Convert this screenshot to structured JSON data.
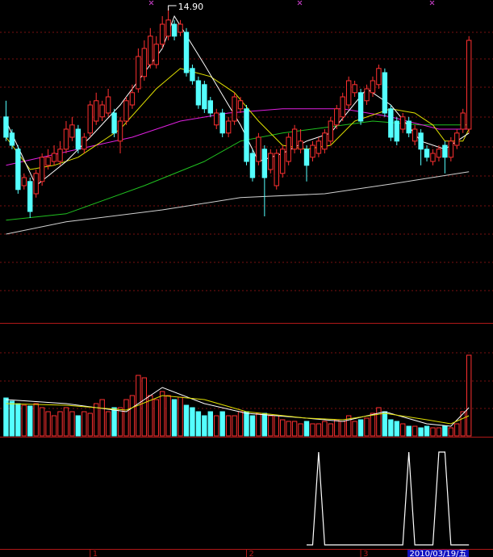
{
  "chart_data": [
    {
      "type": "candlestick",
      "up_color": "#ff3030",
      "down_color": "#54ffff",
      "xlim": [
        -1,
        81
      ],
      "ylim": [
        5.15,
        15.15
      ],
      "open": [
        11.53,
        11.03,
        10.53,
        9.4,
        9.53,
        9.15,
        9.53,
        10.03,
        10.15,
        10.15,
        10.53,
        10.9,
        11.15,
        10.53,
        11.03,
        11.4,
        11.53,
        11.65,
        11.65,
        10.78,
        11.4,
        11.9,
        12.4,
        12.78,
        13.15,
        13.15,
        13.78,
        14.03,
        14.4,
        14.15,
        14.15,
        13.03,
        12.65,
        12.53,
        12.03,
        11.28,
        11.65,
        11.03,
        11.4,
        11.78,
        11.78,
        10.4,
        10.15,
        10.53,
        9.9,
        9.4,
        9.78,
        10.15,
        10.53,
        10.53,
        10.53,
        10.28,
        10.4,
        10.53,
        10.78,
        11.28,
        11.53,
        11.9,
        12.28,
        12.28,
        12.03,
        12.28,
        12.53,
        12.9,
        11.78,
        11.4,
        11.15,
        11.4,
        10.78,
        11.03,
        10.53,
        10.15,
        10.28,
        10.65,
        10.28,
        10.65,
        11.15,
        11.15
      ],
      "close": [
        10.9,
        10.65,
        9.28,
        9.65,
        8.6,
        9.78,
        10.28,
        10.28,
        10.4,
        10.53,
        11.15,
        11.28,
        10.53,
        10.9,
        11.9,
        12.03,
        11.9,
        12.15,
        11.03,
        11.4,
        12.03,
        12.28,
        13.4,
        13.65,
        14.03,
        13.78,
        14.4,
        14.53,
        14.03,
        14.4,
        12.9,
        12.65,
        11.9,
        11.78,
        11.65,
        11.65,
        11.03,
        11.4,
        12.15,
        12.03,
        10.15,
        9.65,
        10.9,
        9.65,
        10.4,
        10.4,
        10.53,
        10.9,
        11.15,
        10.78,
        10.03,
        10.65,
        10.78,
        11.03,
        11.4,
        11.78,
        12.15,
        12.65,
        12.53,
        11.4,
        12.4,
        12.65,
        13.03,
        11.65,
        10.9,
        10.78,
        11.53,
        11.03,
        11.15,
        10.53,
        10.28,
        10.4,
        10.53,
        10.28,
        10.78,
        11.03,
        11.65,
        13.9
      ],
      "high": [
        12.03,
        11.15,
        10.65,
        9.78,
        9.65,
        9.9,
        10.4,
        10.53,
        10.65,
        10.78,
        11.4,
        11.53,
        11.28,
        11.03,
        12.03,
        12.28,
        12.03,
        12.4,
        11.78,
        11.53,
        12.15,
        12.53,
        13.65,
        13.9,
        14.28,
        14.03,
        14.65,
        14.9,
        14.53,
        14.53,
        14.28,
        13.15,
        12.78,
        12.65,
        12.15,
        11.78,
        11.78,
        11.53,
        12.28,
        12.15,
        11.9,
        10.53,
        11.03,
        10.65,
        10.53,
        10.53,
        10.65,
        11.03,
        11.28,
        11.15,
        10.65,
        10.78,
        10.9,
        11.15,
        11.53,
        11.9,
        12.28,
        12.78,
        12.65,
        12.4,
        12.53,
        12.78,
        13.15,
        13.03,
        11.9,
        11.53,
        11.65,
        11.53,
        11.28,
        11.15,
        10.65,
        10.53,
        10.65,
        10.78,
        10.9,
        11.15,
        11.78,
        14.03
      ],
      "low": [
        10.78,
        10.53,
        9.15,
        9.28,
        8.4,
        9.03,
        9.4,
        9.9,
        10.03,
        10.03,
        10.4,
        10.78,
        10.4,
        10.4,
        10.9,
        11.28,
        11.4,
        11.53,
        10.9,
        10.4,
        11.28,
        11.78,
        12.28,
        12.65,
        13.03,
        13.03,
        13.65,
        13.9,
        13.9,
        14.03,
        12.78,
        12.53,
        11.78,
        11.65,
        11.53,
        11.15,
        10.9,
        10.9,
        11.28,
        11.65,
        10.03,
        9.53,
        10.03,
        8.45,
        9.78,
        9.28,
        9.65,
        10.03,
        10.4,
        10.4,
        9.53,
        10.15,
        10.28,
        10.4,
        10.65,
        11.15,
        11.4,
        11.78,
        12.15,
        11.28,
        11.9,
        12.15,
        12.4,
        11.53,
        10.78,
        10.65,
        11.03,
        10.9,
        10.65,
        10.03,
        10.15,
        10.03,
        10.15,
        9.78,
        10.15,
        10.53,
        11.03,
        11.03
      ],
      "max_label": {
        "value": 14.9,
        "label": "14.90"
      },
      "lines": [
        {
          "color": "#d0d0d0",
          "x": [
            0,
            10,
            26,
            39,
            53,
            64,
            77
          ],
          "values": [
            7.9,
            8.28,
            8.65,
            9.03,
            9.15,
            9.45,
            9.83
          ]
        },
        {
          "color": "#20c020",
          "x": [
            0,
            10,
            23,
            33,
            39,
            46,
            53,
            61,
            69,
            77
          ],
          "values": [
            8.33,
            8.53,
            9.4,
            10.15,
            10.78,
            11.03,
            11.2,
            11.4,
            11.28,
            11.28
          ]
        },
        {
          "color": "#e020e0",
          "x": [
            0,
            6,
            12,
            21,
            29,
            37,
            46,
            56,
            64,
            72,
            77
          ],
          "values": [
            10.03,
            10.28,
            10.53,
            10.9,
            11.4,
            11.65,
            11.78,
            11.78,
            11.53,
            11.15,
            11.15
          ]
        },
        {
          "color": "#e0e000",
          "x": [
            0,
            4,
            8,
            12,
            19,
            25,
            29,
            34,
            38,
            42,
            46,
            50,
            54,
            58,
            64,
            68,
            71,
            73,
            76,
            77
          ],
          "values": [
            10.9,
            9.9,
            10.03,
            10.28,
            11.15,
            12.4,
            13.03,
            12.78,
            12.28,
            11.4,
            10.65,
            10.53,
            10.65,
            11.4,
            11.78,
            11.65,
            11.28,
            10.78,
            10.78,
            11.15
          ]
        },
        {
          "color": "#ffffff",
          "x": [
            0,
            5,
            10,
            14,
            19,
            26,
            28,
            33,
            37,
            39,
            42,
            46,
            50,
            54,
            60,
            64,
            69,
            73,
            77
          ],
          "values": [
            11.4,
            9.4,
            10.15,
            10.9,
            11.9,
            13.65,
            14.65,
            13.15,
            11.9,
            11.28,
            10.15,
            10.4,
            10.78,
            11.03,
            12.4,
            11.9,
            10.78,
            10.53,
            11.03
          ]
        }
      ],
      "xticks": [
        {
          "value": 14,
          "label": "1"
        },
        {
          "value": 40,
          "label": "2"
        },
        {
          "value": 59,
          "label": "3"
        }
      ],
      "cursor_label": "2010/03/19/五"
    },
    {
      "type": "bar",
      "ylim": [
        0,
        140
      ],
      "values": [
        47,
        43,
        40,
        38,
        37,
        40,
        35,
        30,
        25,
        30,
        35,
        30,
        25,
        30,
        28,
        40,
        45,
        30,
        35,
        35,
        45,
        50,
        75,
        72,
        50,
        45,
        55,
        50,
        45,
        48,
        38,
        35,
        30,
        25,
        30,
        25,
        30,
        25,
        25,
        30,
        30,
        25,
        28,
        28,
        25,
        25,
        20,
        18,
        18,
        15,
        18,
        15,
        15,
        18,
        15,
        20,
        18,
        25,
        18,
        20,
        22,
        28,
        35,
        30,
        20,
        18,
        15,
        12,
        12,
        10,
        12,
        10,
        10,
        12,
        10,
        15,
        30,
        100
      ],
      "lines": [
        {
          "color": "#ffffff",
          "x": [
            0,
            10,
            20,
            26,
            33,
            40,
            50,
            56,
            63,
            70,
            74,
            77
          ],
          "values": [
            45,
            40,
            30,
            60,
            40,
            28,
            22,
            18,
            30,
            15,
            12,
            35
          ]
        },
        {
          "color": "#e0e000",
          "x": [
            0,
            10,
            20,
            26,
            33,
            40,
            50,
            56,
            63,
            70,
            74,
            77
          ],
          "values": [
            40,
            38,
            32,
            50,
            45,
            30,
            22,
            20,
            28,
            20,
            15,
            25
          ]
        }
      ]
    },
    {
      "type": "line",
      "ylim": [
        0,
        1
      ],
      "color": "#ffffff",
      "values": [
        null,
        null,
        null,
        null,
        null,
        null,
        null,
        null,
        null,
        null,
        null,
        null,
        null,
        null,
        null,
        null,
        null,
        null,
        null,
        null,
        null,
        null,
        null,
        null,
        null,
        null,
        null,
        null,
        null,
        null,
        null,
        null,
        null,
        null,
        null,
        null,
        null,
        null,
        null,
        null,
        null,
        null,
        null,
        null,
        null,
        null,
        null,
        null,
        null,
        null,
        0,
        0,
        1,
        0,
        0,
        0,
        0,
        0,
        0,
        0,
        0,
        0,
        0,
        0,
        0,
        0,
        0,
        1,
        0,
        0,
        0,
        0,
        1,
        1,
        0,
        0,
        0,
        0
      ]
    }
  ]
}
